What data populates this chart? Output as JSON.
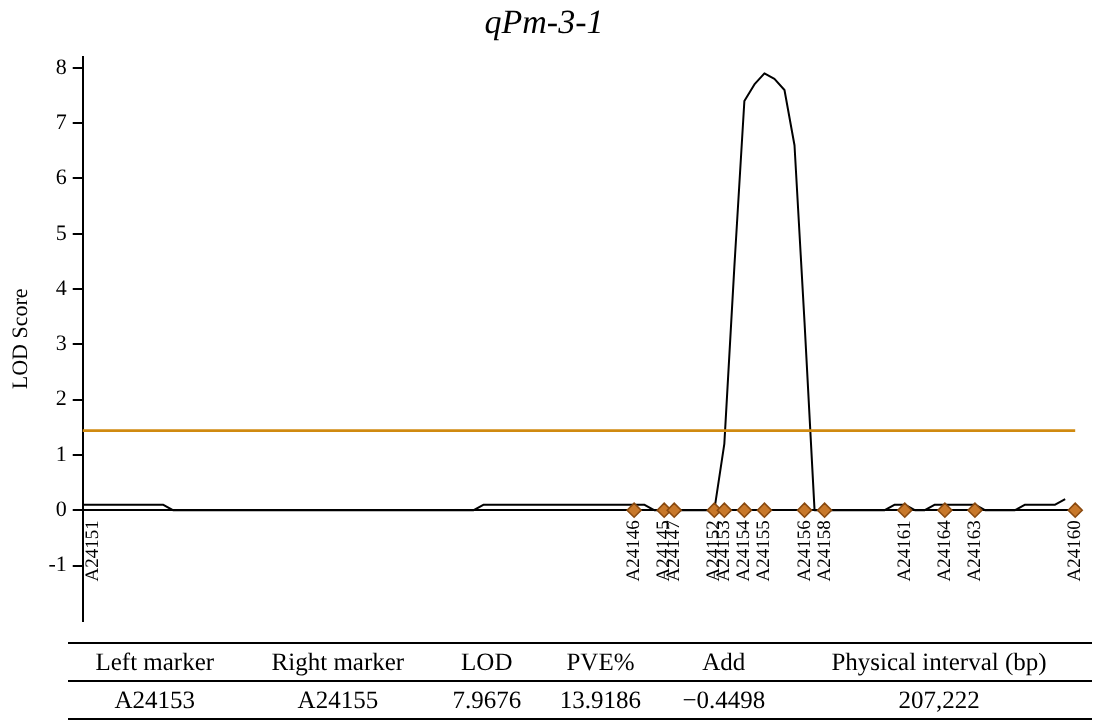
{
  "chart_data": {
    "type": "line",
    "title": "qPm-3-1",
    "ylabel": "LOD Score",
    "ylim": [
      -2,
      8.2
    ],
    "yticks": [
      -1,
      0,
      1,
      2,
      3,
      4,
      5,
      6,
      7,
      8
    ],
    "categories": [
      null,
      "A24151",
      null,
      null,
      null,
      null,
      null,
      null,
      null,
      null,
      null,
      null,
      null,
      null,
      null,
      null,
      null,
      null,
      null,
      null,
      null,
      null,
      null,
      null,
      null,
      null,
      null,
      null,
      null,
      null,
      null,
      null,
      null,
      null,
      null,
      null,
      null,
      null,
      null,
      null,
      null,
      null,
      null,
      null,
      null,
      null,
      null,
      null,
      null,
      null,
      null,
      null,
      null,
      null,
      null,
      "A24146",
      null,
      null,
      "A24145",
      "A24147",
      null,
      null,
      null,
      "A24152",
      "A24153",
      null,
      "A24154",
      null,
      "A24155",
      null,
      null,
      null,
      "A24156",
      null,
      "A24158",
      null,
      null,
      null,
      null,
      null,
      null,
      null,
      "A24161",
      null,
      null,
      null,
      "A24164",
      null,
      null,
      "A24163",
      null,
      null,
      null,
      null,
      null,
      null,
      null,
      null,
      null,
      "A24160"
    ],
    "series": [
      {
        "color": "#000000",
        "marker": "none",
        "values": [
          0.1,
          0.1,
          0.1,
          0.1,
          0.1,
          0.1,
          0.1,
          0.1,
          0.1,
          0,
          0,
          0,
          0,
          0,
          0,
          0,
          0,
          0,
          0,
          0,
          0,
          0,
          0,
          0,
          0,
          0,
          0,
          0,
          0,
          0,
          0,
          0,
          0,
          0,
          0,
          0,
          0,
          0,
          0,
          0,
          0.1,
          0.1,
          0.1,
          0.1,
          0.1,
          0.1,
          0.1,
          0.1,
          0.1,
          0.1,
          0.1,
          0.1,
          0.1,
          0.1,
          0.1,
          0.1,
          0.1,
          0,
          0,
          0,
          0,
          0,
          0,
          0,
          1.2,
          4.4,
          7.4,
          7.7,
          7.9,
          7.8,
          7.6,
          6.6,
          3.4,
          0,
          0,
          0,
          0,
          0,
          0,
          0,
          0,
          0.1,
          0.1,
          0,
          0,
          0.1,
          0.1,
          0.1,
          0.1,
          0.1,
          0,
          0,
          0,
          0,
          0.1,
          0.1,
          0.1,
          0.1,
          0.2,
          null
        ]
      },
      {
        "type": "scatter",
        "color": "#c8782a",
        "marker": "diamond",
        "values": [
          null,
          null,
          null,
          null,
          null,
          null,
          null,
          null,
          null,
          null,
          null,
          null,
          null,
          null,
          null,
          null,
          null,
          null,
          null,
          null,
          null,
          null,
          null,
          null,
          null,
          null,
          null,
          null,
          null,
          null,
          null,
          null,
          null,
          null,
          null,
          null,
          null,
          null,
          null,
          null,
          null,
          null,
          null,
          null,
          null,
          null,
          null,
          null,
          null,
          null,
          null,
          null,
          null,
          null,
          null,
          0,
          null,
          null,
          0,
          0,
          null,
          null,
          null,
          0,
          0,
          null,
          0,
          null,
          0,
          null,
          null,
          null,
          0,
          null,
          0,
          null,
          null,
          null,
          null,
          null,
          null,
          null,
          0,
          null,
          null,
          null,
          0,
          null,
          null,
          0,
          null,
          null,
          null,
          null,
          null,
          null,
          null,
          null,
          null,
          0
        ]
      }
    ],
    "ref_lines": [
      {
        "axis": "y",
        "value": 1.44,
        "color": "#d08a10"
      }
    ],
    "grid": false,
    "legend": false,
    "annotations": [
      "Left marker",
      "Right marker",
      "LOD",
      "PVE%",
      "Add",
      "Physical interval (bp)",
      "A24153",
      "A24155",
      "7.9676",
      "13.9186",
      "−0.4498",
      "207,222"
    ]
  }
}
